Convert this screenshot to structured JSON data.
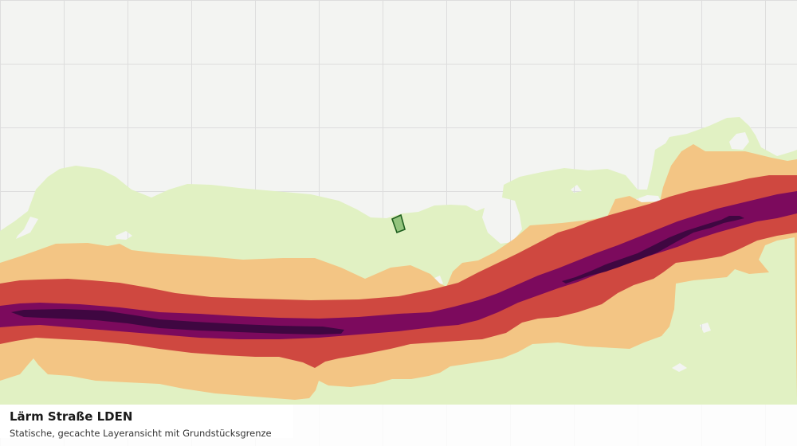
{
  "layer": {
    "title": "Lärm Straße LDEN",
    "subtitle": "Statische, gecachte Layeransicht mit Grundstücksgrenze"
  },
  "colors": {
    "background": "#f3f4f2",
    "grid": "#dddddd",
    "band_lowest": "#e1f1c3",
    "band_low": "#f3c584",
    "band_mid": "#cf4840",
    "band_high": "#7c0a5d",
    "band_highest": "#3f0741",
    "parcel_fill": "#93c47d",
    "parcel_stroke": "#1e5e1e"
  }
}
